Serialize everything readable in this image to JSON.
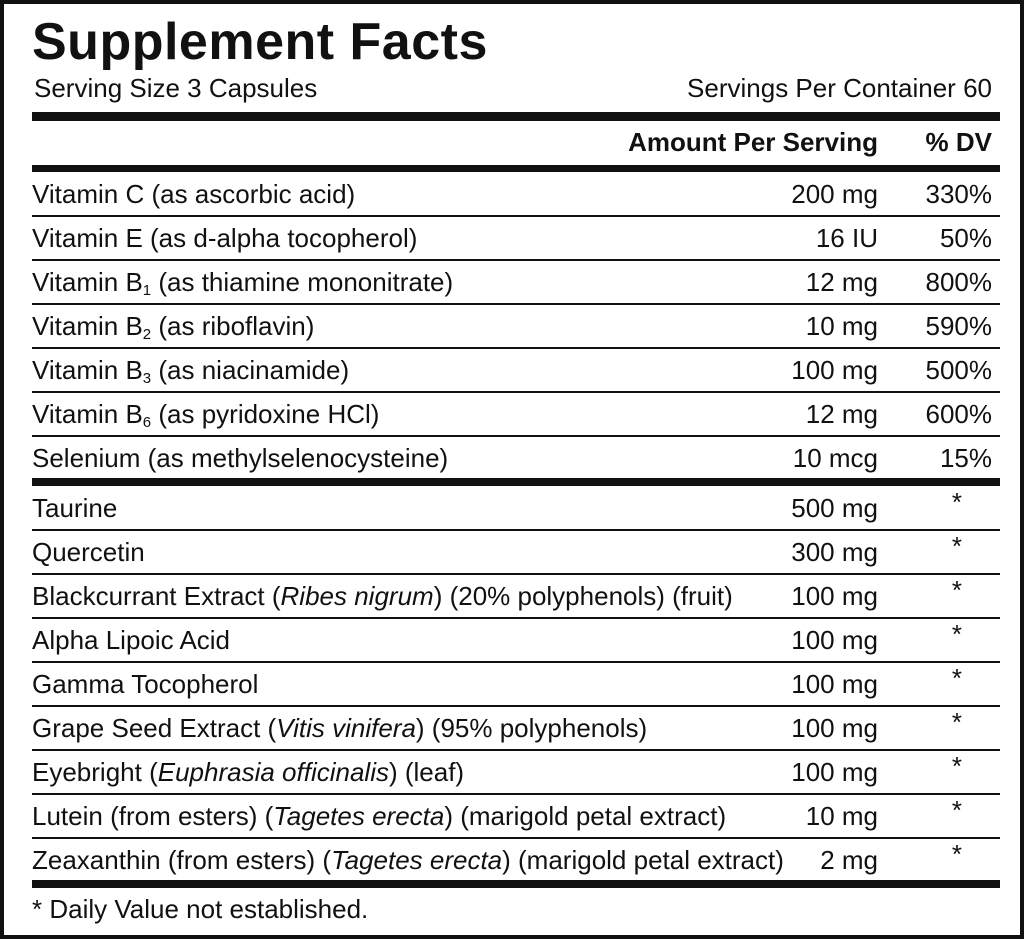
{
  "header": {
    "title": "Supplement Facts",
    "serving_size": "Serving Size 3 Capsules",
    "servings_per_container": "Servings Per Container 60"
  },
  "columns": {
    "amount": "Amount Per Serving",
    "dv": "% DV"
  },
  "sections": [
    {
      "rows": [
        {
          "name": [
            "Vitamin C (as ascorbic acid)"
          ],
          "amount": "200 mg",
          "dv": "330%"
        },
        {
          "name": [
            "Vitamin E (as d-alpha tocopherol)"
          ],
          "amount": "16 IU",
          "dv": "50%"
        },
        {
          "name": [
            "Vitamin B",
            {
              "text": "1",
              "style": "subscript"
            },
            " (as thiamine mononitrate)"
          ],
          "amount": "12 mg",
          "dv": "800%"
        },
        {
          "name": [
            "Vitamin B",
            {
              "text": "2",
              "style": "subscript"
            },
            " (as riboflavin)"
          ],
          "amount": "10 mg",
          "dv": "590%"
        },
        {
          "name": [
            "Vitamin B",
            {
              "text": "3",
              "style": "subscript"
            },
            " (as niacinamide)"
          ],
          "amount": "100 mg",
          "dv": "500%"
        },
        {
          "name": [
            "Vitamin B",
            {
              "text": "6",
              "style": "subscript"
            },
            " (as pyridoxine HCl)"
          ],
          "amount": "12 mg",
          "dv": "600%"
        },
        {
          "name": [
            "Selenium (as methylselenocysteine)"
          ],
          "amount": "10 mcg",
          "dv": "15%"
        }
      ]
    },
    {
      "rows": [
        {
          "name": [
            "Taurine"
          ],
          "amount": "500 mg",
          "dv": "*"
        },
        {
          "name": [
            "Quercetin"
          ],
          "amount": "300 mg",
          "dv": "*"
        },
        {
          "name": [
            "Blackcurrant Extract (",
            {
              "text": "Ribes nigrum",
              "style": "italic"
            },
            ") (20% polyphenols) (fruit)"
          ],
          "amount": "100 mg",
          "dv": "*"
        },
        {
          "name": [
            "Alpha Lipoic Acid"
          ],
          "amount": "100 mg",
          "dv": "*"
        },
        {
          "name": [
            "Gamma Tocopherol"
          ],
          "amount": "100 mg",
          "dv": "*"
        },
        {
          "name": [
            "Grape Seed Extract (",
            {
              "text": "Vitis vinifera",
              "style": "italic"
            },
            ") (95% polyphenols)"
          ],
          "amount": "100 mg",
          "dv": "*"
        },
        {
          "name": [
            "Eyebright (",
            {
              "text": "Euphrasia officinalis",
              "style": "italic"
            },
            ") (leaf)"
          ],
          "amount": "100 mg",
          "dv": "*"
        },
        {
          "name": [
            "Lutein (from esters) (",
            {
              "text": "Tagetes erecta",
              "style": "italic"
            },
            ") (marigold petal extract)"
          ],
          "amount": "10 mg",
          "dv": "*"
        },
        {
          "name": [
            "Zeaxanthin (from esters) (",
            {
              "text": "Tagetes erecta",
              "style": "italic"
            },
            ") (marigold petal extract)"
          ],
          "amount": "2 mg",
          "dv": "*"
        }
      ]
    }
  ],
  "footnote": "* Daily Value not established."
}
